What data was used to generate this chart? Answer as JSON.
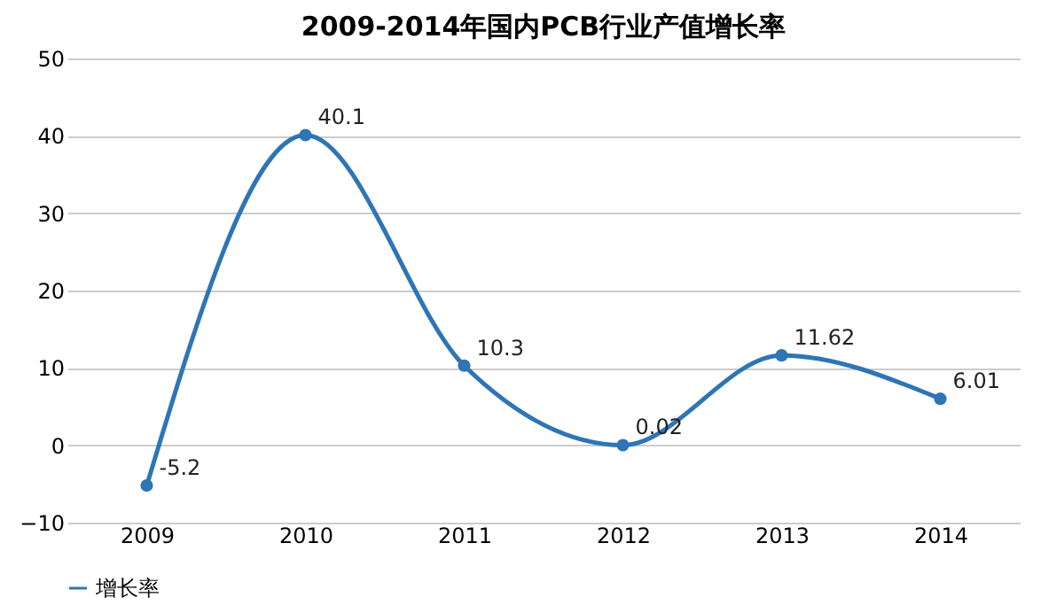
{
  "chart_data": {
    "type": "line",
    "title": "2009-2014年国内PCB行业产值增长率",
    "categories": [
      "2009",
      "2010",
      "2011",
      "2012",
      "2013",
      "2014"
    ],
    "series": [
      {
        "name": "增长率",
        "color": "#2e75b6",
        "values": [
          -5.2,
          40.1,
          10.3,
          0.02,
          11.62,
          6.01
        ]
      }
    ],
    "ylim": [
      -10,
      50
    ],
    "yticks": [
      -10,
      0,
      10,
      20,
      30,
      40,
      50
    ],
    "grid": "y",
    "legend": "bottom",
    "marker": "circle",
    "line_style": "solid",
    "data_labels": true
  }
}
